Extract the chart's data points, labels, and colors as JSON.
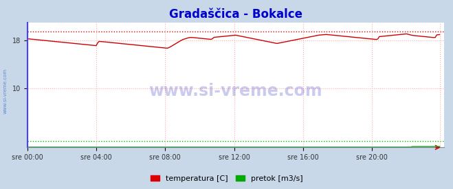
{
  "title": "Gradaščica - Bokalce",
  "title_color": "#0000cc",
  "title_fontsize": 12,
  "bg_color": "#c8d8e8",
  "plot_bg_color": "#ffffff",
  "xlim": [
    0,
    287
  ],
  "ylim": [
    0,
    21
  ],
  "yticks": [
    10,
    18
  ],
  "xtick_labels": [
    "sre 00:00",
    "sre 04:00",
    "sre 08:00",
    "sre 12:00",
    "sre 16:00",
    "sre 20:00"
  ],
  "xtick_positions": [
    0,
    48,
    96,
    144,
    192,
    240
  ],
  "vgrid_positions": [
    0,
    48,
    96,
    144,
    192,
    240,
    287
  ],
  "hgrid_values": [
    10,
    18
  ],
  "grid_color": "#ffaaaa",
  "watermark_text": "www.si-vreme.com",
  "watermark_color": "#3333bb",
  "watermark_alpha": 0.25,
  "watermark_fontsize": 17,
  "side_watermark": "www.si-vreme.com",
  "side_watermark_color": "#3366cc",
  "legend_items": [
    {
      "label": "temperatura [C]",
      "color": "#dd0000"
    },
    {
      "label": "pretok [m3/s]",
      "color": "#00aa00"
    }
  ],
  "temp_color": "#cc0000",
  "pretok_color": "#00bb00",
  "visina_color": "#4444ff",
  "temp_max_y": 19.5,
  "temp_max_line_color": "#cc0000",
  "pretok_max_y": 1.05,
  "pretok_max_line_color": "#00bb00",
  "temp_values": [
    18.3,
    18.28,
    18.25,
    18.22,
    18.2,
    18.18,
    18.15,
    18.12,
    18.1,
    18.08,
    18.05,
    18.02,
    18.0,
    17.98,
    17.95,
    17.92,
    17.9,
    17.88,
    17.85,
    17.82,
    17.8,
    17.78,
    17.75,
    17.73,
    17.7,
    17.68,
    17.65,
    17.63,
    17.6,
    17.58,
    17.55,
    17.52,
    17.5,
    17.48,
    17.45,
    17.43,
    17.4,
    17.38,
    17.35,
    17.33,
    17.3,
    17.28,
    17.25,
    17.23,
    17.2,
    17.18,
    17.15,
    17.13,
    17.85,
    17.85,
    17.82,
    17.8,
    17.78,
    17.75,
    17.73,
    17.7,
    17.68,
    17.65,
    17.62,
    17.6,
    17.58,
    17.55,
    17.52,
    17.5,
    17.48,
    17.45,
    17.43,
    17.4,
    17.38,
    17.35,
    17.33,
    17.3,
    17.28,
    17.25,
    17.22,
    17.2,
    17.18,
    17.15,
    17.12,
    17.1,
    17.08,
    17.05,
    17.02,
    17.0,
    16.98,
    16.95,
    16.92,
    16.9,
    16.88,
    16.85,
    16.82,
    16.8,
    16.78,
    16.75,
    16.72,
    16.7,
    16.82,
    16.95,
    17.1,
    17.25,
    17.4,
    17.55,
    17.7,
    17.85,
    18.0,
    18.12,
    18.22,
    18.3,
    18.38,
    18.45,
    18.5,
    18.52,
    18.5,
    18.48,
    18.45,
    18.42,
    18.4,
    18.38,
    18.35,
    18.32,
    18.3,
    18.28,
    18.25,
    18.22,
    18.2,
    18.18,
    18.52,
    18.55,
    18.58,
    18.6,
    18.62,
    18.65,
    18.67,
    18.7,
    18.72,
    18.75,
    18.77,
    18.8,
    18.82,
    18.85,
    18.87,
    18.9,
    18.85,
    18.8,
    18.75,
    18.7,
    18.65,
    18.6,
    18.55,
    18.5,
    18.45,
    18.4,
    18.35,
    18.3,
    18.25,
    18.2,
    18.15,
    18.1,
    18.05,
    18.0,
    17.95,
    17.9,
    17.85,
    17.8,
    17.75,
    17.7,
    17.65,
    17.6,
    17.55,
    17.5,
    17.55,
    17.6,
    17.65,
    17.7,
    17.75,
    17.8,
    17.85,
    17.9,
    17.95,
    18.0,
    18.05,
    18.1,
    18.15,
    18.2,
    18.25,
    18.3,
    18.35,
    18.4,
    18.45,
    18.5,
    18.55,
    18.6,
    18.65,
    18.7,
    18.75,
    18.8,
    18.85,
    18.9,
    18.92,
    18.95,
    18.98,
    19.0,
    19.02,
    19.0,
    18.98,
    18.95,
    18.92,
    18.9,
    18.88,
    18.85,
    18.82,
    18.8,
    18.78,
    18.75,
    18.72,
    18.7,
    18.68,
    18.65,
    18.62,
    18.6,
    18.58,
    18.55,
    18.52,
    18.5,
    18.48,
    18.45,
    18.42,
    18.4,
    18.38,
    18.35,
    18.32,
    18.3,
    18.28,
    18.25,
    18.22,
    18.2,
    18.18,
    18.15,
    18.65,
    18.68,
    18.7,
    18.72,
    18.75,
    18.78,
    18.8,
    18.82,
    18.85,
    18.88,
    18.9,
    18.92,
    18.95,
    18.98,
    19.0,
    19.02,
    19.05,
    19.08,
    19.1,
    19.12,
    19.0,
    18.95,
    18.9,
    18.85,
    18.82,
    18.8,
    18.78,
    18.75,
    18.72,
    18.7,
    18.68,
    18.65,
    18.62,
    18.6,
    18.58,
    18.55,
    18.52,
    18.5,
    18.48,
    18.95,
    18.98,
    19.0
  ],
  "pretok_base": 0.5,
  "pretok_spike_start": 268,
  "pretok_spike_val": 1.5,
  "visina_val": 0.05
}
